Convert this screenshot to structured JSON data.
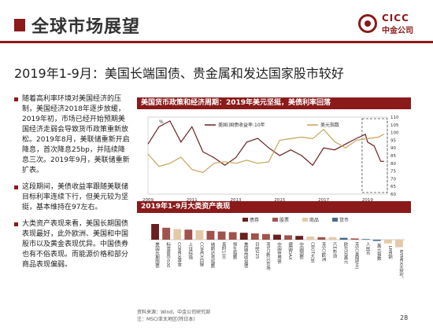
{
  "header": {
    "title": "全球市场展望",
    "logo_en": "CICC",
    "logo_cn": "中金公司"
  },
  "subtitle": "2019年1-9月：美国长端国债、贵金属和发达国家股市较好",
  "bullets": [
    "随着高利率环境对美国经济的压制，美国经济2018年逐步放缓，2019年初，市场已经开始预期美国经济走弱会导致货币政策重新放松。2019年8月，美联储重新开启降息，首次降息25bp，并陆续降息三次。2019年9月，美联储重新扩表。",
    "这段期间，美债收益率跟随美联储目标利率连续下行，但美元较为坚挺，基本维持在97左右。",
    "大类资产表现来看，美国长期国债表现最好，此外欧洲、美国和中国股市以及黄金表现优异。中国债券也有不俗表现。而能源价格和部分商品表现偏弱。"
  ],
  "panel1": {
    "title": "美国货币政策和经济周期：2019年美元坚挺，美债利率回落"
  },
  "panel2": {
    "title": "2019年1-9月大类资产表现"
  },
  "chart_data": [
    {
      "type": "line",
      "title": "美国货币政策和经济周期：2019年美元坚挺，美债利率回落",
      "ylabel_left": "%",
      "ylim_left": [
        0,
        4
      ],
      "ylim_right": [
        60,
        110
      ],
      "x_ticks": [
        "2009",
        "2011",
        "2013",
        "2015",
        "2017",
        "2019"
      ],
      "right_ticks": [
        60,
        65,
        70,
        75,
        80,
        85,
        90,
        95,
        100,
        105,
        110
      ],
      "highlight": "2019",
      "series": [
        {
          "name": "美国:国债收益率:10年",
          "axis": "left",
          "color": "#6b1f1f",
          "x": [
            2009,
            2009.5,
            2010,
            2010.5,
            2011,
            2011.5,
            2012,
            2012.5,
            2013,
            2013.5,
            2014,
            2014.5,
            2015,
            2015.5,
            2016,
            2016.5,
            2017,
            2017.5,
            2018,
            2018.5,
            2018.9,
            2019,
            2019.3,
            2019.6,
            2019.75
          ],
          "values": [
            2.6,
            3.5,
            3.8,
            2.7,
            3.5,
            2.2,
            1.9,
            1.5,
            1.9,
            2.7,
            2.9,
            2.4,
            2.0,
            2.3,
            2.0,
            1.5,
            2.4,
            2.3,
            2.6,
            2.9,
            3.1,
            2.7,
            2.5,
            1.7,
            1.7
          ]
        },
        {
          "name": "美元指数",
          "axis": "right",
          "color": "#c8a15a",
          "x": [
            2009,
            2009.5,
            2010,
            2010.5,
            2011,
            2011.5,
            2012,
            2012.5,
            2013,
            2013.5,
            2014,
            2014.5,
            2015,
            2015.5,
            2016,
            2016.5,
            2017,
            2017.5,
            2018,
            2018.5,
            2019,
            2019.5,
            2019.75
          ],
          "values": [
            86,
            78,
            80,
            84,
            76,
            74,
            80,
            81,
            80,
            82,
            80,
            81,
            95,
            96,
            97,
            96,
            102,
            94,
            90,
            95,
            96,
            97,
            99
          ]
        }
      ]
    },
    {
      "type": "bar",
      "title": "2019年1-9月大类资产表现",
      "legend": [
        "债券",
        "股票",
        "商品",
        "货币"
      ],
      "colors": {
        "债券": "#6b1f1f",
        "股票": "#a0524c",
        "商品": "#e4c9a9",
        "货币": "#4a6a8a"
      },
      "categories": [
        "美国长期国债",
        "标准普尔500",
        "COMEX黄金",
        "上证综指",
        "COMEX白银",
        "纳斯达克指数",
        "富时100",
        "恒生指数",
        "美国高收益债",
        "日经225",
        "MSCI新兴市场",
        "中国信用债",
        "德国DAX",
        "中国国债",
        "CBOT大豆",
        "MSCI欧洲",
        "ICE布油",
        "欧元兑美元",
        "MSCI美国(主)",
        "人民币",
        "美元指数",
        "LME铜",
        "NYMEX天然气"
      ],
      "values": [
        25,
        19,
        17,
        16,
        15,
        14,
        13,
        12,
        11,
        10,
        9,
        8,
        7,
        6,
        5,
        4,
        4,
        3,
        2,
        1,
        -2,
        -6,
        -12
      ],
      "kinds": [
        "债券",
        "股票",
        "商品",
        "股票",
        "商品",
        "股票",
        "股票",
        "股票",
        "债券",
        "股票",
        "股票",
        "债券",
        "股票",
        "债券",
        "商品",
        "股票",
        "商品",
        "货币",
        "股票",
        "货币",
        "货币",
        "商品",
        "商品"
      ]
    }
  ],
  "footer": {
    "source": "资料来源：Wind，中金公司研究部",
    "note": "注：MSCI亚太地区(除日本)",
    "page": "28"
  }
}
